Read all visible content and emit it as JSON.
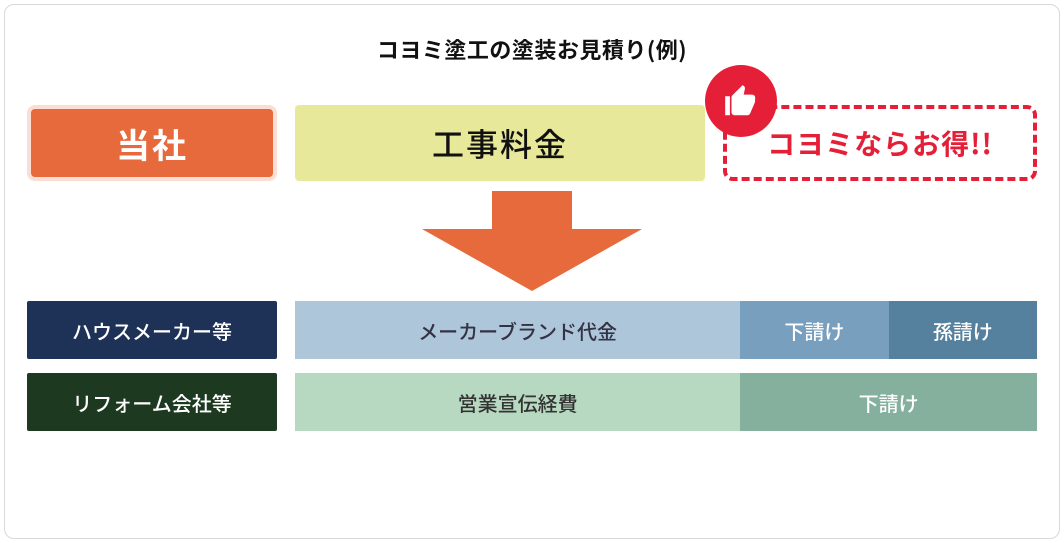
{
  "title": "コヨミ塗工の塗装お見積り(例)",
  "company": {
    "label": "当社",
    "bg": "#e66a3c",
    "outer_border": "#fbded3",
    "text_color": "#ffffff"
  },
  "cost": {
    "label": "工事料金",
    "bg": "#e8e89a",
    "text_color": "#111111"
  },
  "deal": {
    "label": "コヨミならお得!!",
    "border_color": "#e51f37",
    "text_color": "#e51f37",
    "badge_bg": "#e51f37",
    "badge_icon_color": "#ffffff"
  },
  "arrow": {
    "fill": "#e66a3c"
  },
  "rows": [
    {
      "label": "ハウスメーカー等",
      "label_bg": "#1e3157",
      "label_text_color": "#ffffff",
      "segments": [
        {
          "label": "メーカーブランド代金",
          "bg": "#aec6da",
          "text_color": "#333344",
          "flex": 3
        },
        {
          "label": "下請け",
          "bg": "#789fbe",
          "text_color": "#ffffff",
          "flex": 1
        },
        {
          "label": "孫請け",
          "bg": "#55819e",
          "text_color": "#ffffff",
          "flex": 1
        }
      ]
    },
    {
      "label": "リフォーム会社等",
      "label_bg": "#1d3a21",
      "label_text_color": "#ffffff",
      "segments": [
        {
          "label": "営業宣伝経費",
          "bg": "#b7d9c1",
          "text_color": "#333333",
          "flex": 3
        },
        {
          "label": "下請け",
          "bg": "#85b09d",
          "text_color": "#ffffff",
          "flex": 2
        }
      ]
    }
  ]
}
